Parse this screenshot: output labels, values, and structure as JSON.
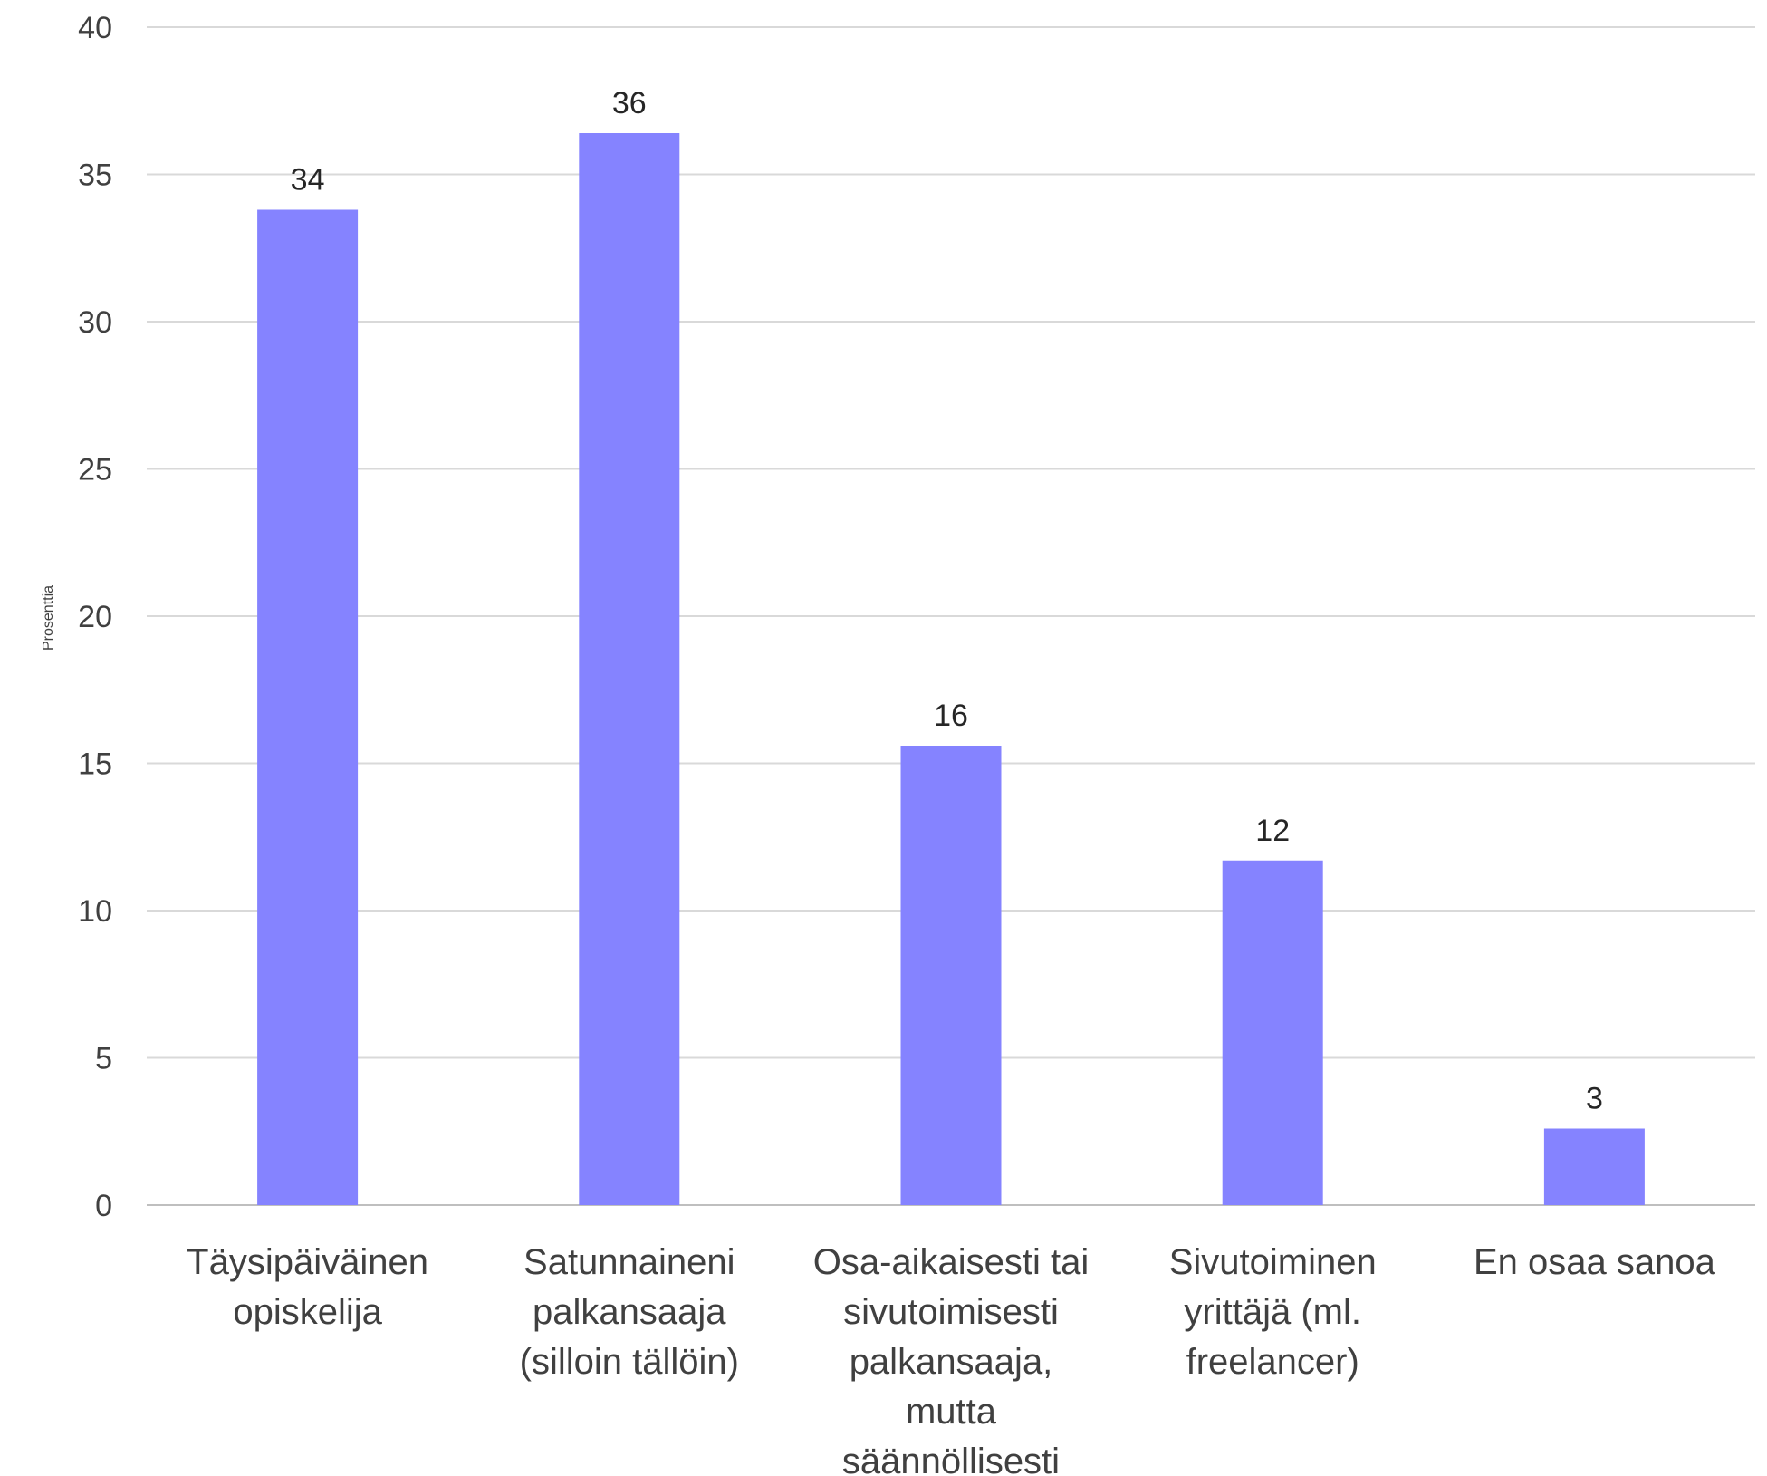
{
  "chart_data": {
    "type": "bar",
    "categories": [
      [
        "Täysipäiväinen",
        "opiskelija"
      ],
      [
        "Satunnaineni",
        "palkansaaja",
        "(silloin tällöin)"
      ],
      [
        "Osa-aikaisesti tai",
        "sivutoimisesti",
        "palkansaaja,",
        "mutta",
        "säännöllisesti"
      ],
      [
        "Sivutoiminen",
        "yrittäjä (ml.",
        "freelancer)"
      ],
      [
        "En osaa sanoa"
      ]
    ],
    "values": [
      33.8,
      36.4,
      15.6,
      11.7,
      2.6
    ],
    "data_labels": [
      "34",
      "36",
      "16",
      "12",
      "3"
    ],
    "ylabel": "Prosenttia",
    "ylim": [
      0,
      40
    ],
    "yticks": [
      0,
      5,
      10,
      15,
      20,
      25,
      30,
      35,
      40
    ],
    "grid": true,
    "bar_color": "#8583ff"
  }
}
